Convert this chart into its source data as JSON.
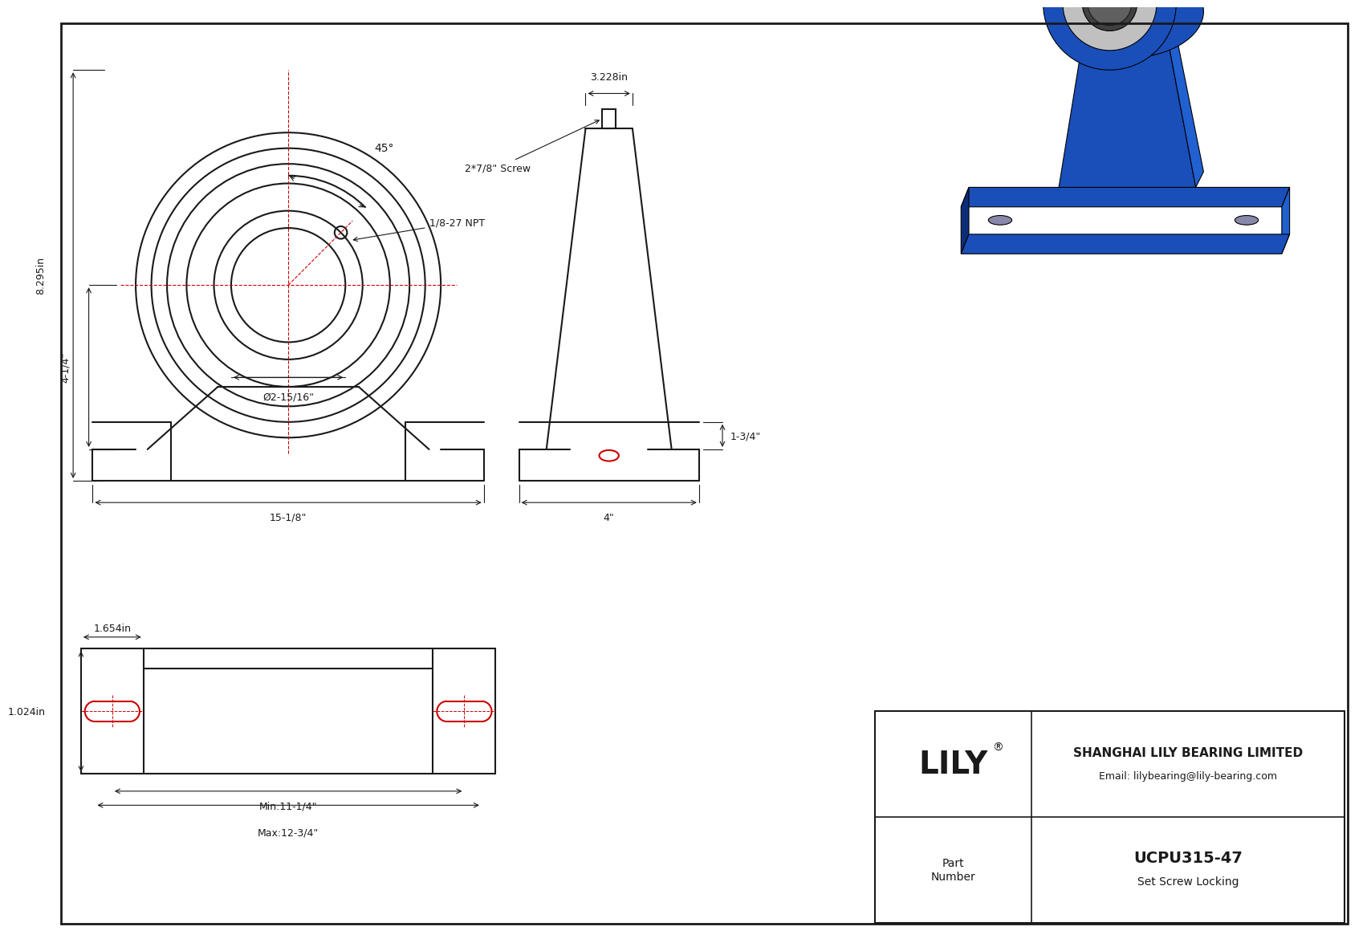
{
  "bg_color": "#ffffff",
  "line_color": "#1a1a1a",
  "red_color": "#cc0000",
  "dim_color": "#1a1a1a",
  "title_company": "SHANGHAI LILY BEARING LIMITED",
  "title_email": "Email: lilybearing@lily-bearing.com",
  "part_number": "UCPU315-47",
  "part_type": "Set Screw Locking",
  "part_label": "Part\nNumber",
  "brand": "LILY",
  "brand_registered": "®",
  "dims": {
    "angle": "45°",
    "npt": "1/8-27 NPT",
    "screw": "2*7/8\" Screw",
    "width_top": "3.228in",
    "height_total": "8.295in",
    "height_base": "4-1/4\"",
    "bore_dia": "Ø2-15/16\"",
    "total_width": "15-1/8\"",
    "side_height": "1-3/4\"",
    "side_width": "4\"",
    "slot_len1": "1.654in",
    "slot_len2": "1.024in",
    "bolt_min": "Min:11-1/4\"",
    "bolt_max": "Max:12-3/4\""
  }
}
